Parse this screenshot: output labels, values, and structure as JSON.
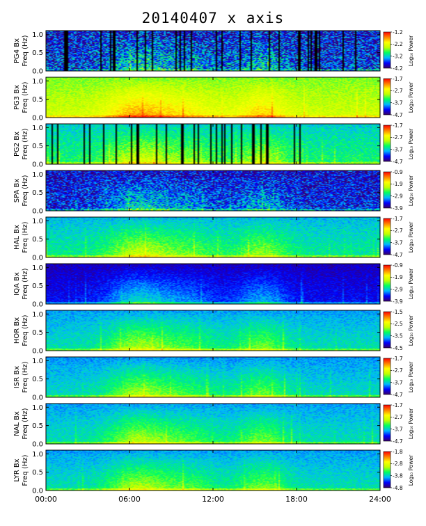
{
  "title": "20140407 x axis",
  "chart_data": {
    "type": "heatmap",
    "title": "20140407 x axis",
    "x_tick_labels": [
      "00:00",
      "06:00",
      "12:00",
      "18:00",
      "24:00"
    ],
    "x_ticks_hours": [
      0,
      6,
      12,
      18,
      24
    ],
    "xlim_hours": [
      0,
      24
    ],
    "ylim": [
      0,
      1.1
    ],
    "y_tick_labels": [
      "0.0",
      "0.5",
      "1.0"
    ],
    "y_ticks": [
      0.0,
      0.5,
      1.0
    ],
    "ylabel_line2": "Freq (Hz)",
    "colorbar_label": "Log₁₀ Power",
    "colormap": [
      "#3a0066",
      "#0000ff",
      "#00b8ff",
      "#00ff60",
      "#c0ff00",
      "#ffff00",
      "#ff8000",
      "#ff0000"
    ],
    "panels": [
      {
        "station_label": "PG4 Bx",
        "cb_ticks": [
          "-1.2",
          "-2.2",
          "-3.2",
          "-4.2"
        ],
        "cb_range": [
          -4.2,
          -1.2
        ],
        "bg_level": 0.12,
        "noise": 0.45,
        "dark_gaps": true
      },
      {
        "station_label": "PG3 Bx",
        "cb_ticks": [
          "-1.7",
          "-2.7",
          "-3.7",
          "-4.7"
        ],
        "cb_range": [
          -4.7,
          -1.7
        ],
        "bg_level": 0.52,
        "noise": 0.12,
        "dark_gaps": false
      },
      {
        "station_label": "PG2 Bx",
        "cb_ticks": [
          "-1.7",
          "-2.7",
          "-3.7",
          "-4.7"
        ],
        "cb_range": [
          -4.7,
          -1.7
        ],
        "bg_level": 0.33,
        "noise": 0.16,
        "dark_gaps": true
      },
      {
        "station_label": "SPA Bx",
        "cb_ticks": [
          "-0.9",
          "-1.9",
          "-2.9",
          "-3.9"
        ],
        "cb_range": [
          -3.9,
          -0.9
        ],
        "bg_level": 0.1,
        "noise": 0.35,
        "dark_gaps": false
      },
      {
        "station_label": "HAL Bx",
        "cb_ticks": [
          "-1.7",
          "-2.7",
          "-3.7",
          "-4.7"
        ],
        "cb_range": [
          -4.7,
          -1.7
        ],
        "bg_level": 0.3,
        "noise": 0.14,
        "dark_gaps": false
      },
      {
        "station_label": "IQA Bx",
        "cb_ticks": [
          "-0.9",
          "-1.9",
          "-2.9",
          "-3.9"
        ],
        "cb_range": [
          -3.9,
          -0.9
        ],
        "bg_level": 0.08,
        "noise": 0.12,
        "dark_gaps": false
      },
      {
        "station_label": "HOR Bx",
        "cb_ticks": [
          "-1.5",
          "-2.5",
          "-3.5",
          "-4.5"
        ],
        "cb_range": [
          -4.5,
          -1.5
        ],
        "bg_level": 0.27,
        "noise": 0.12,
        "dark_gaps": false
      },
      {
        "station_label": "ISR Bx",
        "cb_ticks": [
          "-1.7",
          "-2.7",
          "-3.7",
          "-4.7"
        ],
        "cb_range": [
          -4.7,
          -1.7
        ],
        "bg_level": 0.26,
        "noise": 0.12,
        "dark_gaps": false
      },
      {
        "station_label": "NAL Bx",
        "cb_ticks": [
          "-1.7",
          "-2.7",
          "-3.7",
          "-4.7"
        ],
        "cb_range": [
          -4.7,
          -1.7
        ],
        "bg_level": 0.27,
        "noise": 0.12,
        "dark_gaps": false
      },
      {
        "station_label": "LYR Bx",
        "cb_ticks": [
          "-1.8",
          "-2.8",
          "-3.8",
          "-4.8"
        ],
        "cb_range": [
          -4.8,
          -1.8
        ],
        "bg_level": 0.27,
        "noise": 0.12,
        "dark_gaps": false
      }
    ]
  }
}
